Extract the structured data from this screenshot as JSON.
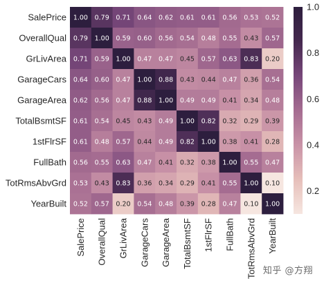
{
  "chart_data": {
    "type": "heatmap",
    "title": "",
    "xlabel": "",
    "ylabel": "",
    "rows": [
      "SalePrice",
      "OverallQual",
      "GrLivArea",
      "GarageCars",
      "GarageArea",
      "TotalBsmtSF",
      "1stFlrSF",
      "FullBath",
      "TotRmsAbvGrd",
      "YearBuilt"
    ],
    "columns": [
      "SalePrice",
      "OverallQual",
      "GrLivArea",
      "GarageCars",
      "GarageArea",
      "TotalBsmtSF",
      "1stFlrSF",
      "FullBath",
      "TotRmsAbvGrd",
      "YearBuilt"
    ],
    "values": [
      [
        1.0,
        0.79,
        0.71,
        0.64,
        0.62,
        0.61,
        0.61,
        0.56,
        0.53,
        0.52
      ],
      [
        0.79,
        1.0,
        0.59,
        0.6,
        0.56,
        0.54,
        0.48,
        0.55,
        0.43,
        0.57
      ],
      [
        0.71,
        0.59,
        1.0,
        0.47,
        0.47,
        0.45,
        0.57,
        0.63,
        0.83,
        0.2
      ],
      [
        0.64,
        0.6,
        0.47,
        1.0,
        0.88,
        0.43,
        0.44,
        0.47,
        0.36,
        0.54
      ],
      [
        0.62,
        0.56,
        0.47,
        0.88,
        1.0,
        0.49,
        0.49,
        0.41,
        0.34,
        0.48
      ],
      [
        0.61,
        0.54,
        0.45,
        0.43,
        0.49,
        1.0,
        0.82,
        0.32,
        0.29,
        0.39
      ],
      [
        0.61,
        0.48,
        0.57,
        0.44,
        0.49,
        0.82,
        1.0,
        0.38,
        0.41,
        0.28
      ],
      [
        0.56,
        0.55,
        0.63,
        0.47,
        0.41,
        0.32,
        0.38,
        1.0,
        0.55,
        0.47
      ],
      [
        0.53,
        0.43,
        0.83,
        0.36,
        0.34,
        0.29,
        0.41,
        0.55,
        1.0,
        0.1
      ],
      [
        0.52,
        0.57,
        0.2,
        0.54,
        0.48,
        0.39,
        0.28,
        0.47,
        0.1,
        1.0
      ]
    ],
    "colorbar": {
      "range": [
        0.1,
        1.0
      ],
      "ticks": [
        "0.2",
        "0.4",
        "0.6",
        "0.8",
        "1.0"
      ],
      "colors": [
        "#f6e6e0",
        "#e6bfba",
        "#c993a7",
        "#a56c91",
        "#77477a",
        "#45294f",
        "#2d1e3e"
      ]
    },
    "value_format": "2 decimals",
    "annotated": true
  },
  "watermark": "知乎 @方翔"
}
